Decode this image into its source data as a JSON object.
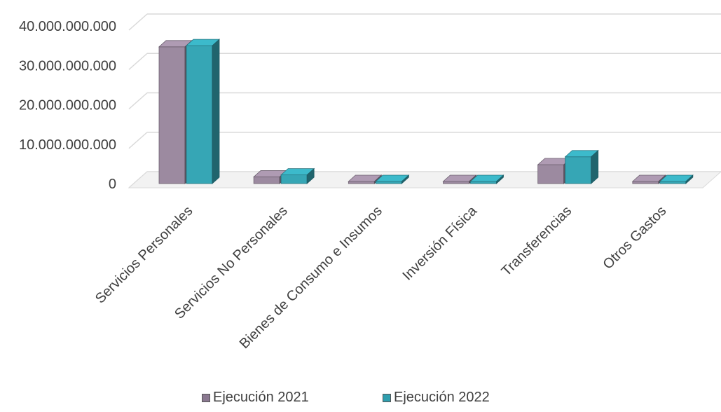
{
  "chart_data": {
    "type": "bar",
    "subtype": "3d-clustered-column",
    "categories": [
      "Servicios Personales",
      "Servicios No Personales",
      "Bienes de Consumo e Insumos",
      "Inversión Física",
      "Transferencias",
      "Otros Gastos"
    ],
    "series": [
      {
        "name": "Ejecución 2021",
        "color": "#9c8aa0",
        "values": [
          34700000000,
          1700000000,
          150000000,
          50000000,
          4800000000,
          50000000
        ]
      },
      {
        "name": "Ejecución 2022",
        "color": "#36a6b5",
        "values": [
          35000000000,
          2200000000,
          150000000,
          50000000,
          6800000000,
          50000000
        ]
      }
    ],
    "y_ticks": [
      "0",
      "10.000.000.000",
      "20.000.000.000",
      "30.000.000.000",
      "40.000.000.000"
    ],
    "ylim": [
      0,
      40000000000
    ],
    "grid": true,
    "legend_position": "bottom",
    "title": "",
    "xlabel": "",
    "ylabel": ""
  }
}
